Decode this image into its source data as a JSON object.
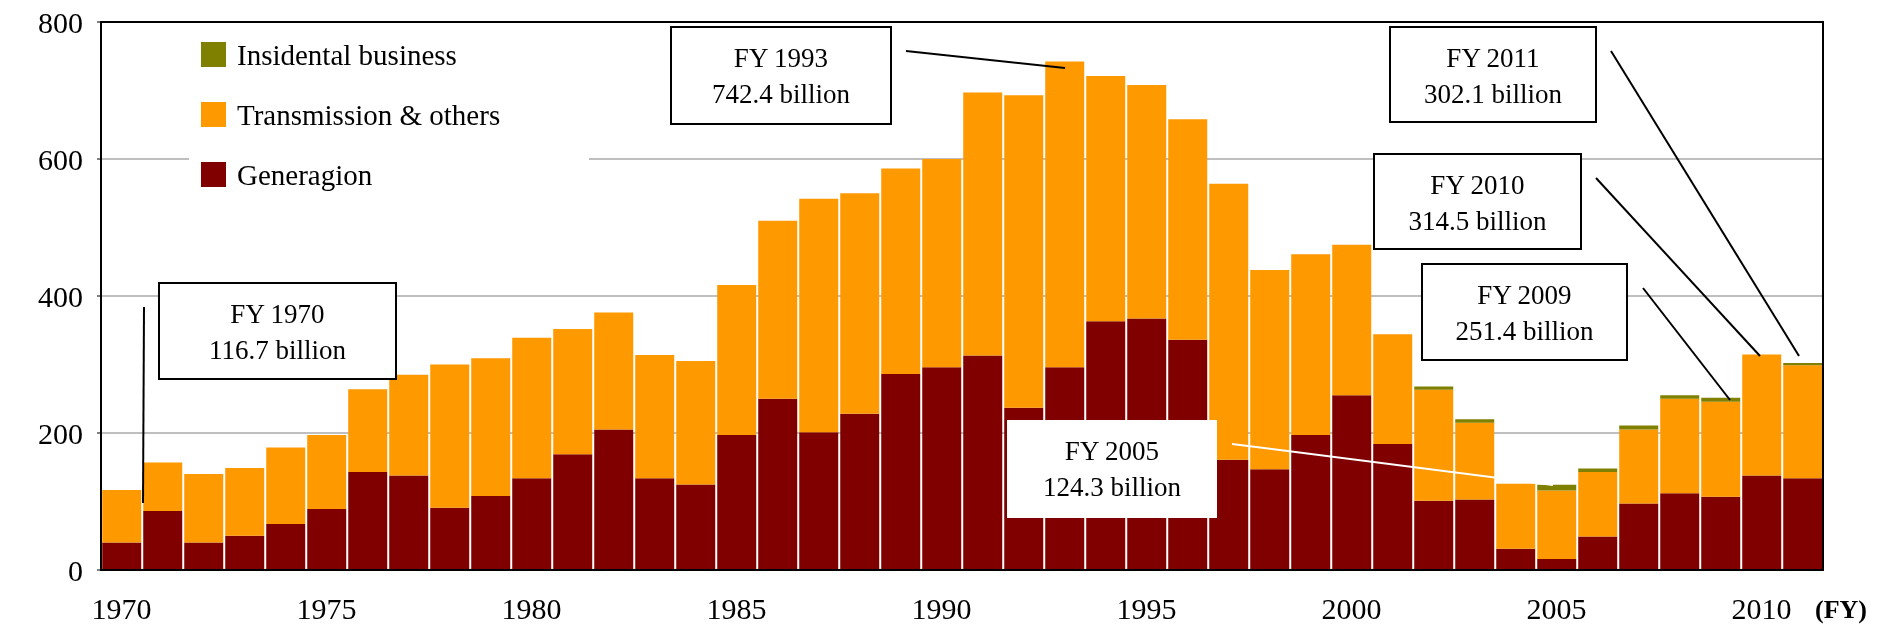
{
  "chart_data": {
    "type": "bar",
    "stacked": true,
    "xlabel": "(FY)",
    "categories": [
      "1970",
      null,
      null,
      null,
      null,
      "1975",
      null,
      null,
      null,
      null,
      "1980",
      null,
      null,
      null,
      null,
      "1985",
      null,
      null,
      null,
      null,
      "1990",
      null,
      null,
      null,
      null,
      "1995",
      null,
      null,
      null,
      null,
      "2000",
      null,
      null,
      null,
      null,
      "2005",
      null,
      null,
      null,
      null,
      "2010",
      null
    ],
    "series": [
      {
        "name": "Generagion",
        "color": "#800000",
        "values": [
          40,
          86,
          40,
          50,
          67,
          89,
          143,
          138,
          91,
          108,
          134,
          169,
          205,
          134,
          125,
          197,
          250,
          201,
          228,
          286,
          296,
          313,
          237,
          296,
          363,
          367,
          336,
          161,
          147,
          197,
          255,
          184,
          101,
          103,
          31,
          16,
          49,
          97,
          112,
          107,
          138,
          134
        ]
      },
      {
        "name": "Transmission & others",
        "color": "#ff9900",
        "values": [
          76.7,
          71,
          100,
          99,
          112,
          108,
          121,
          147,
          209,
          201,
          205,
          183,
          171,
          180,
          180,
          219,
          260,
          341,
          322,
          300,
          304,
          384,
          456,
          446.4,
          358,
          341,
          322,
          403,
          291,
          264,
          220,
          160,
          162,
          112,
          95,
          100,
          94,
          108,
          138,
          138.5,
          176.5,
          165
        ]
      },
      {
        "name": "Insidental business",
        "color": "#808000",
        "values": [
          null,
          null,
          null,
          null,
          null,
          null,
          null,
          null,
          null,
          null,
          null,
          null,
          null,
          null,
          null,
          null,
          null,
          null,
          null,
          null,
          null,
          null,
          null,
          null,
          null,
          null,
          null,
          null,
          null,
          null,
          null,
          null,
          5,
          5,
          null,
          8.3,
          5,
          6,
          5,
          5.9,
          null,
          3.1
        ]
      }
    ],
    "ylim": [
      0,
      800
    ],
    "yticks": [
      0,
      200,
      400,
      600,
      800
    ],
    "grid": "y",
    "legend": "top left",
    "annotations": [
      "FY 1970\n116.7 billion",
      "FY 1993\n742.4 billion",
      "FY 2005\n124.3 billion",
      "FY 2011\n302.1 billion",
      "FY 2010\n314.5 billion",
      "FY 2009\n251.4 billion"
    ]
  }
}
